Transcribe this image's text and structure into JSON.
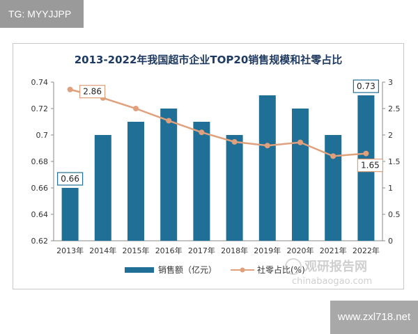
{
  "header": {
    "badge_text": "TG: MYYJJPP"
  },
  "footer": {
    "site_text": "www.zxl718.net"
  },
  "watermark": {
    "cn": "观研报告网",
    "en": "chinabaogao.com"
  },
  "colors": {
    "bar": "#1f6f96",
    "line": "#e0a07c",
    "title": "#1f3a60"
  },
  "chart_data": {
    "type": "bar",
    "title": "2013-2022年我国超市企业TOP20销售规模和社零占比",
    "categories": [
      "2013年",
      "2014年",
      "2015年",
      "2016年",
      "2017年",
      "2018年",
      "2019年",
      "2020年",
      "2021年",
      "2022年"
    ],
    "series": [
      {
        "name": "销售额（亿元）",
        "type": "bar",
        "axis": "left",
        "values": [
          0.66,
          0.7,
          0.71,
          0.72,
          0.71,
          0.7,
          0.73,
          0.72,
          0.7,
          0.73
        ]
      },
      {
        "name": "社零占比(%)",
        "type": "line",
        "axis": "right",
        "values": [
          2.86,
          2.7,
          2.5,
          2.27,
          2.05,
          1.87,
          1.8,
          1.86,
          1.6,
          1.65
        ]
      }
    ],
    "y_left": {
      "min": 0.62,
      "max": 0.74,
      "ticks": [
        "0.62",
        "0.64",
        "0.66",
        "0.68",
        "0.7",
        "0.72",
        "0.74"
      ]
    },
    "y_right": {
      "min": 0,
      "max": 3,
      "ticks": [
        "0",
        "0.5",
        "1",
        "1.5",
        "2",
        "2.5",
        "3"
      ]
    },
    "labels": [
      {
        "text": "0.66",
        "series": 0,
        "index": 0
      },
      {
        "text": "0.73",
        "series": 0,
        "index": 9
      },
      {
        "text": "2.86",
        "series": 1,
        "index": 0
      },
      {
        "text": "1.65",
        "series": 1,
        "index": 9
      }
    ],
    "legend_position": "bottom-left",
    "grid": false
  }
}
